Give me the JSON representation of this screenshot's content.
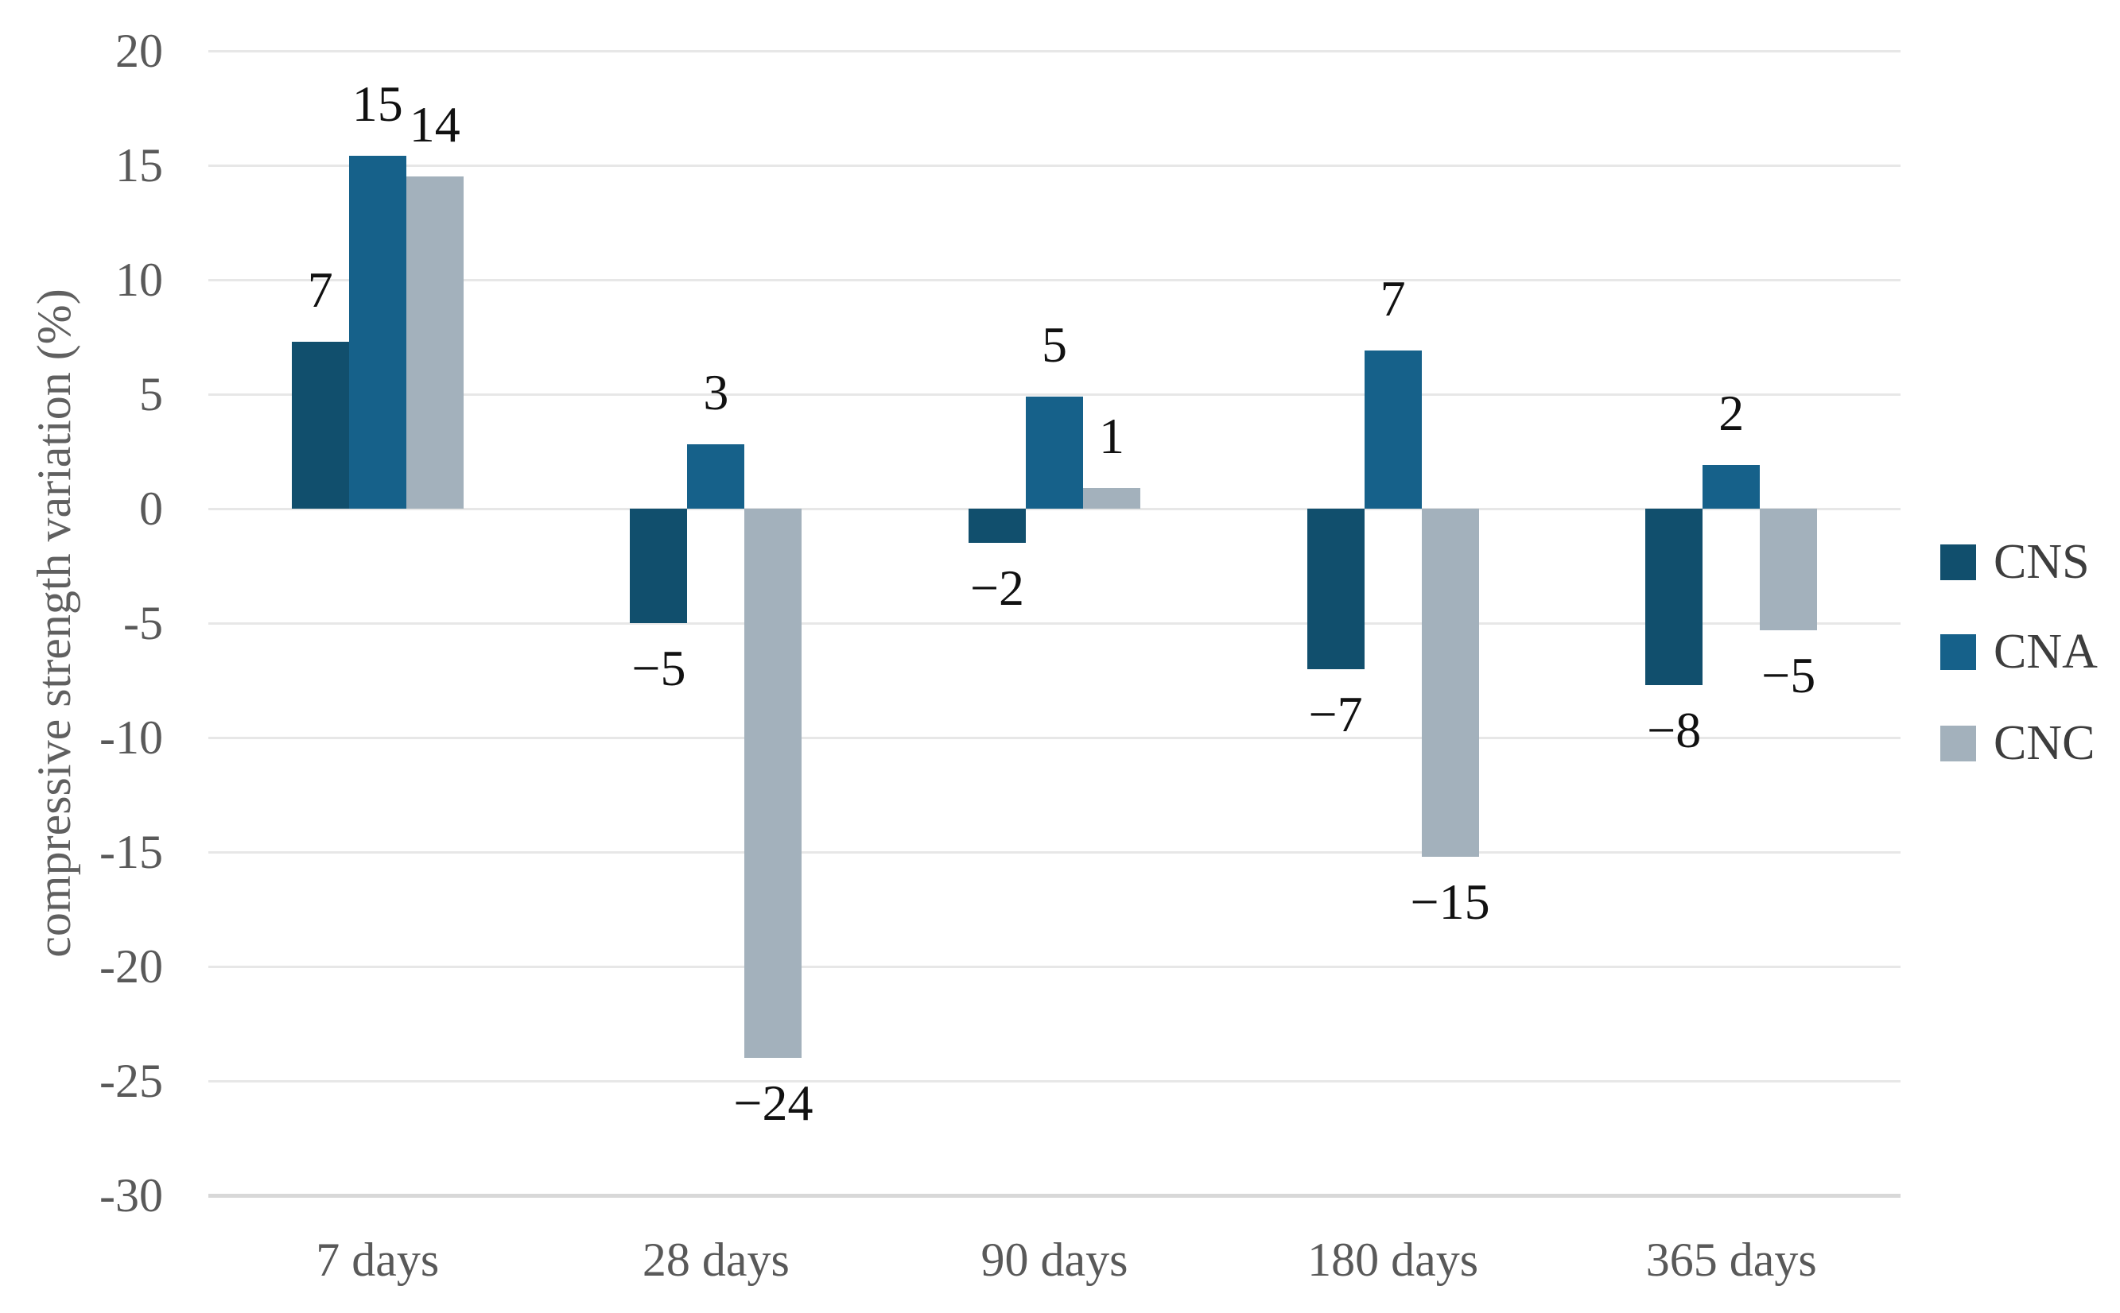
{
  "chart_data": {
    "type": "bar",
    "title": "",
    "ylabel": "compressive strength variation (%)",
    "xlabel": "",
    "categories": [
      "7 days",
      "28 days",
      "90 days",
      "180 days",
      "365 days"
    ],
    "series": [
      {
        "name": "CNS",
        "color": "#114f6d",
        "values": [
          7,
          -5,
          -2,
          -7,
          -8
        ],
        "plot_values": [
          7.3,
          -5.0,
          -1.5,
          -7.0,
          -7.7
        ],
        "labels": [
          "7",
          "−5",
          "−2",
          "−7",
          "−8"
        ]
      },
      {
        "name": "CNA",
        "color": "#16618a",
        "values": [
          15,
          3,
          5,
          7,
          2
        ],
        "plot_values": [
          15.4,
          2.8,
          4.9,
          6.9,
          1.9
        ],
        "labels": [
          "15",
          "3",
          "5",
          "7",
          "2"
        ]
      },
      {
        "name": "CNC",
        "color": "#a3b1bc",
        "values": [
          14,
          -24,
          1,
          -15,
          -5
        ],
        "plot_values": [
          14.5,
          -24.0,
          0.9,
          -15.2,
          -5.3
        ],
        "labels": [
          "14",
          "−24",
          "1",
          "−15",
          "−5"
        ]
      }
    ],
    "y_ticks": [
      "20",
      "15",
      "10",
      "5",
      "0",
      "-5",
      "-10",
      "-15",
      "-20",
      "-25",
      "-30"
    ],
    "ylim": [
      -30,
      20
    ],
    "grid": true,
    "gridline_color": "#e7e7e7",
    "baseline_color": "#d8d8d8",
    "legend_position": "right"
  }
}
